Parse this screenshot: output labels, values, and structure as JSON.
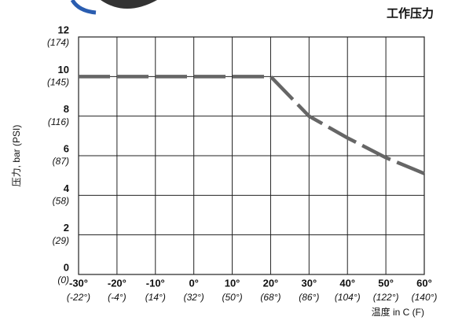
{
  "chart_data": {
    "type": "line",
    "title": "工作压力",
    "y_label": "压力, bar (PSI)",
    "x_label": "温度 in C (F)",
    "x": [
      -30,
      20,
      30,
      40,
      50,
      60
    ],
    "series": [
      {
        "name": "工作压力",
        "color": "#666666",
        "values": [
          10,
          10,
          8,
          6.9,
          5.9,
          5.1
        ]
      }
    ],
    "xlim": [
      -30,
      60
    ],
    "xticks": [
      {
        "value": -30,
        "label": "-30°"
      },
      {
        "value": -20,
        "label": "-20°"
      },
      {
        "value": -10,
        "label": "-10°"
      },
      {
        "value": 0,
        "label": "0°"
      },
      {
        "value": 10,
        "label": "10°"
      },
      {
        "value": 20,
        "label": "20°"
      },
      {
        "value": 30,
        "label": "30°"
      },
      {
        "value": 40,
        "label": "40°"
      },
      {
        "value": 50,
        "label": "50°"
      },
      {
        "value": 60,
        "label": "60°"
      }
    ],
    "x2lim": [
      -22,
      140
    ],
    "x2ticks": [
      {
        "value": -22,
        "label": "(-22°)"
      },
      {
        "value": -4,
        "label": "(-4°)"
      },
      {
        "value": 14,
        "label": "(14°)"
      },
      {
        "value": 32,
        "label": "(32°)"
      },
      {
        "value": 50,
        "label": "(50°)"
      },
      {
        "value": 68,
        "label": "(68°)"
      },
      {
        "value": 86,
        "label": "(86°)"
      },
      {
        "value": 104,
        "label": "(104°)"
      },
      {
        "value": 122,
        "label": "(122°)"
      },
      {
        "value": 140,
        "label": "(140°)"
      }
    ],
    "ylim": [
      0,
      12
    ],
    "yticks": [
      0,
      2,
      4,
      6,
      8,
      10,
      12
    ],
    "y2lim": [
      0,
      174
    ],
    "y2ticks": [
      {
        "value": 0,
        "label": "(0)"
      },
      {
        "value": 29,
        "label": "(29)"
      },
      {
        "value": 58,
        "label": "(58)"
      },
      {
        "value": 87,
        "label": "(87)"
      },
      {
        "value": 116,
        "label": "(116)"
      },
      {
        "value": 145,
        "label": "(145)"
      },
      {
        "value": 174,
        "label": "(174)"
      }
    ],
    "grid": true,
    "dashed": true
  }
}
